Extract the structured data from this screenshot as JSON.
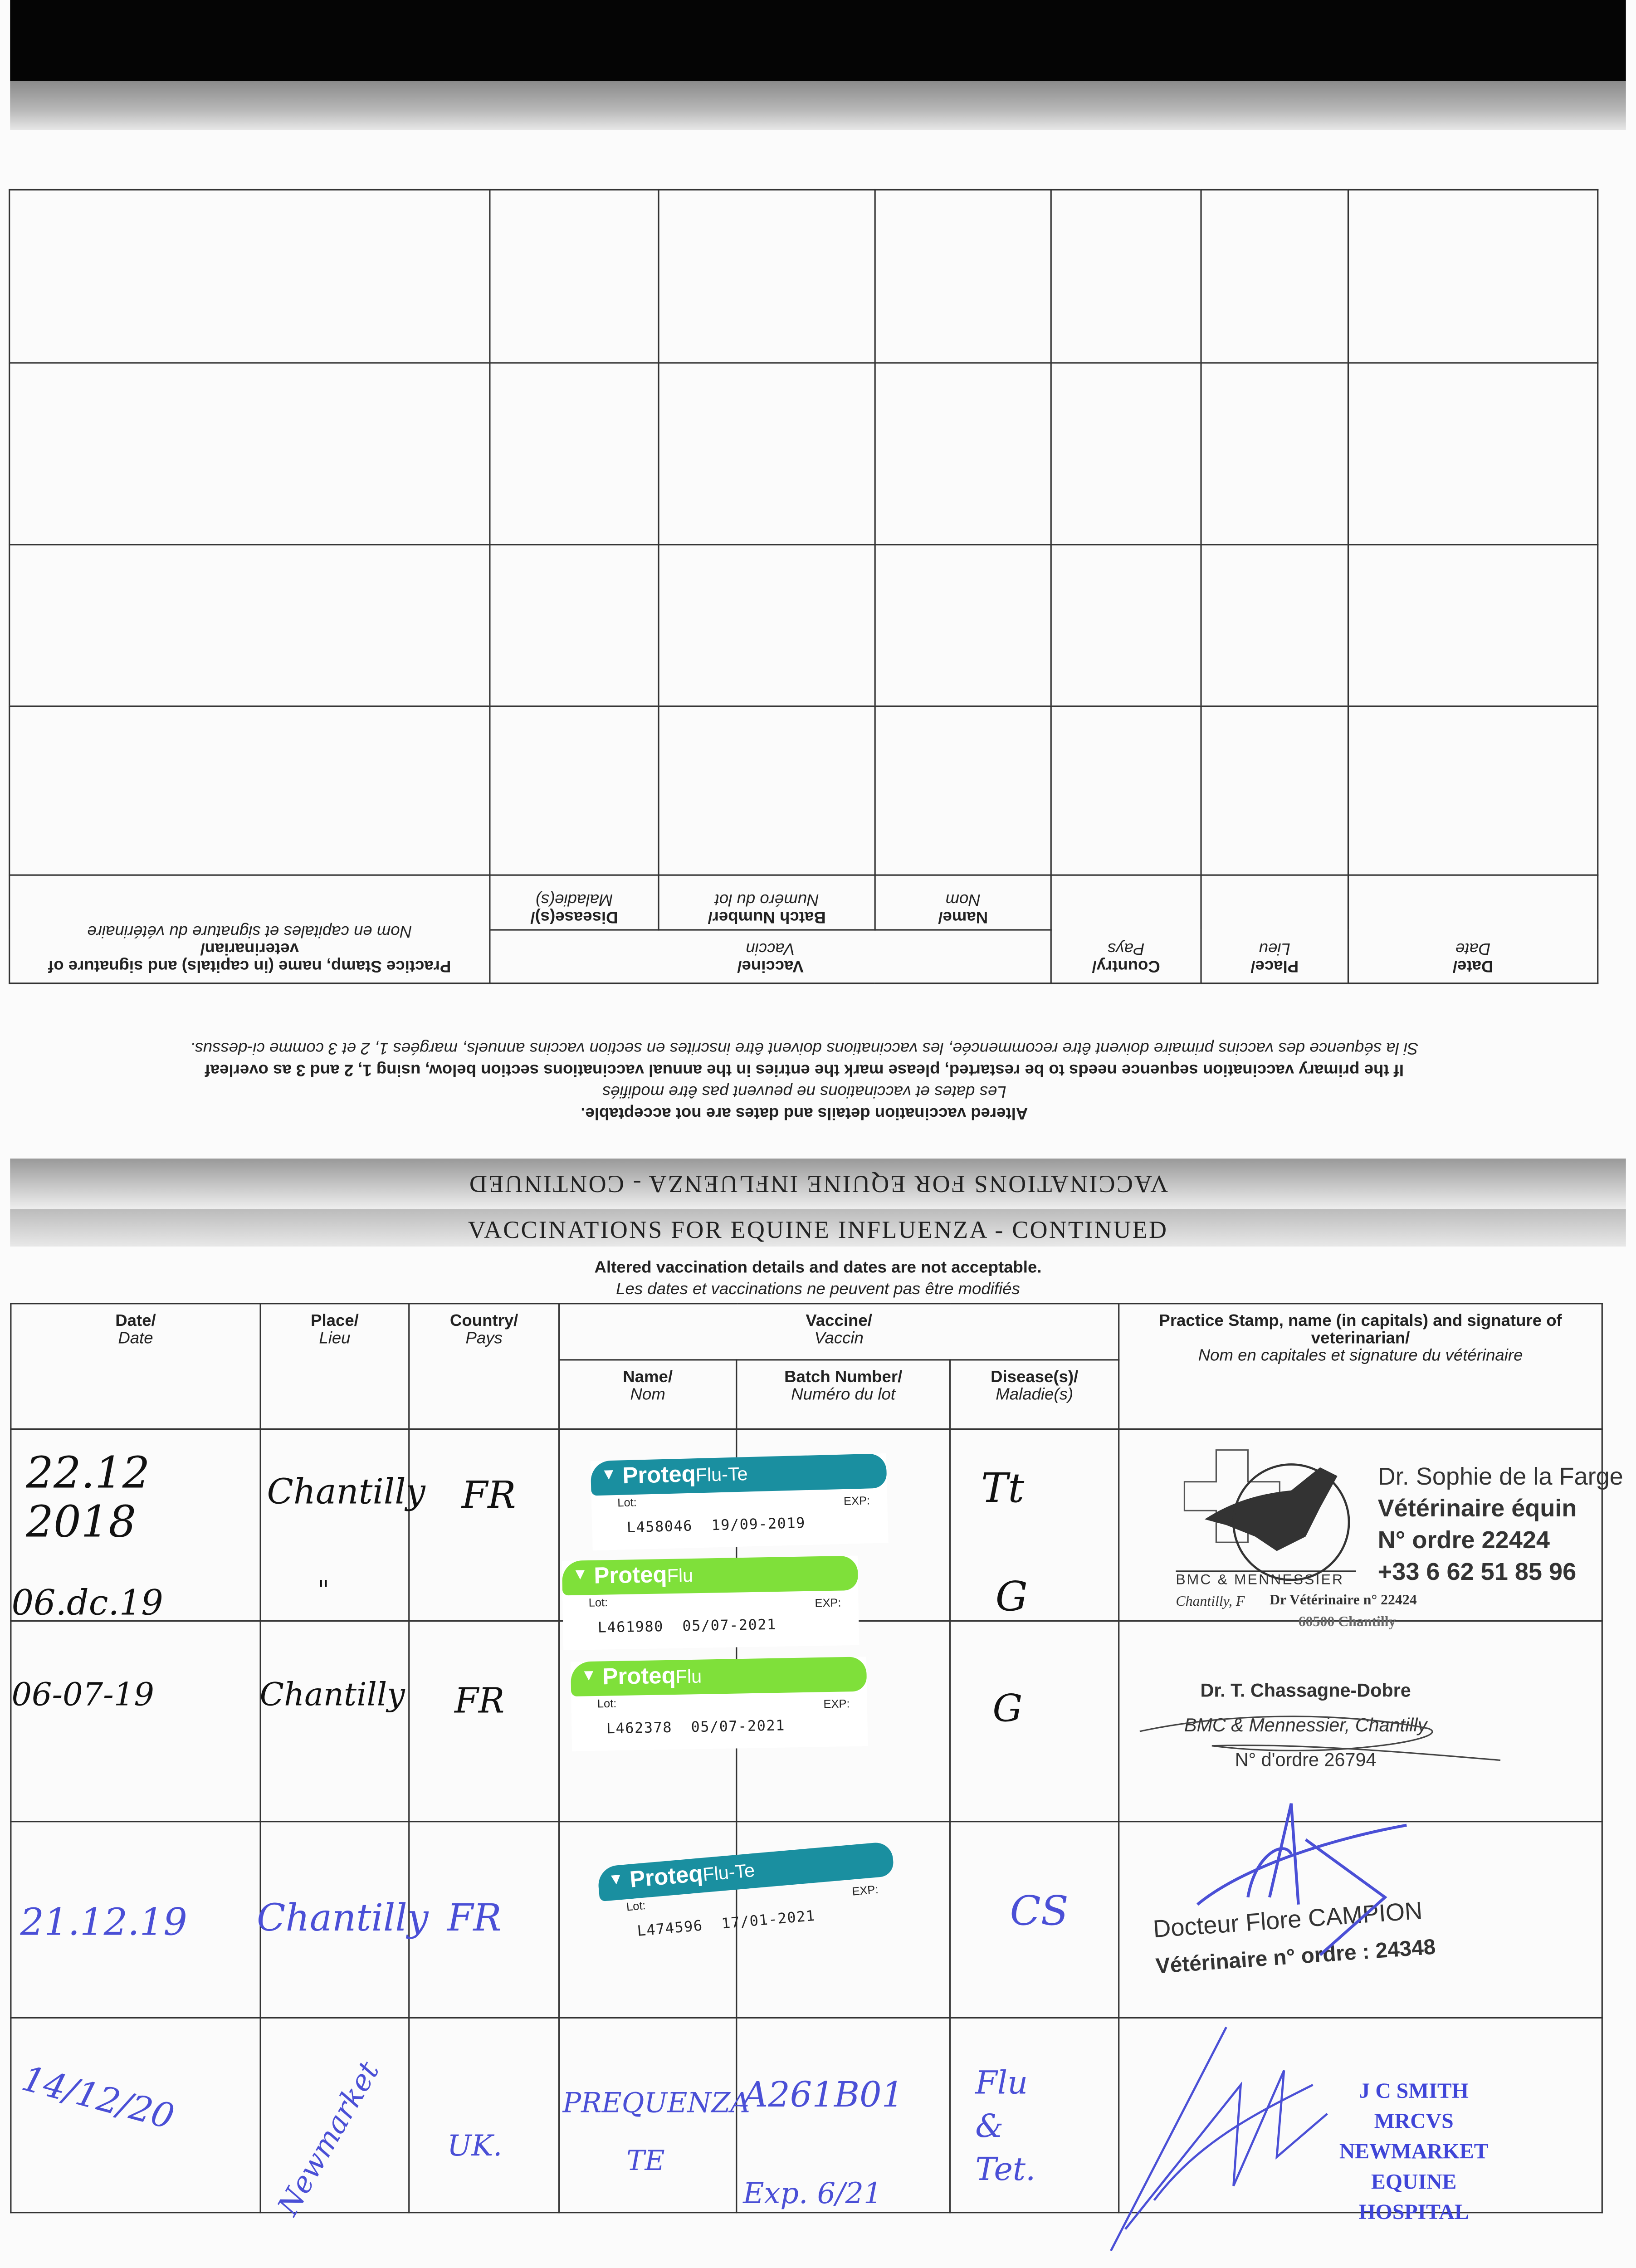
{
  "header": {
    "title": "VACCINATIONS FOR EQUINE INFLUENZA - CONTINUED"
  },
  "notice": {
    "line1": "Altered vaccination details and dates are not acceptable.",
    "line2": "Les dates et vaccinations ne peuvent pas être modifiés",
    "restart_en": "If the primary vaccination sequence needs to be restarted, please mark the entries in the annual vaccinations section below, using 1, 2 and 3 as overleaf",
    "restart_fr": "Si la séquence des vaccins primaire doivent être recommencée, les vaccinations doivent être inscrites en section vaccins annuels, margées 1, 2 et 3 comme ci-dessus."
  },
  "columns": {
    "date": {
      "en": "Date/",
      "fr": "Date"
    },
    "place": {
      "en": "Place/",
      "fr": "Lieu"
    },
    "country": {
      "en": "Country/",
      "fr": "Pays"
    },
    "vaccine": {
      "en": "Vaccine/",
      "fr": "Vaccin"
    },
    "name": {
      "en": "Name/",
      "fr": "Nom"
    },
    "batch": {
      "en": "Batch Number/",
      "fr": "Numéro du lot"
    },
    "disease": {
      "en": "Disease(s)/",
      "fr": "Maladie(s)"
    },
    "stamp": {
      "en": "Practice Stamp, name (in capitals) and signature of veterinarian/",
      "fr": "Nom en capitales et signature du vétérinaire"
    }
  },
  "colors": {
    "proteq_flu_te": "#1a8fa0",
    "proteq_flu": "#7fe03a",
    "blue_ink": "#4a4fd6"
  },
  "entries": [
    {
      "date": "22.12 2018",
      "place": "Chantilly",
      "country": "FR",
      "disease": "Tt",
      "sticker": {
        "brand": "Proteq",
        "product": "Flu-Te",
        "lot_label": "Lot:",
        "exp_label": "EXP:",
        "lot": "L458046",
        "exp": "19/09-2019"
      }
    },
    {
      "date": "06.dc.19",
      "place": "\"",
      "country": "",
      "disease": "G",
      "sticker": {
        "brand": "Proteq",
        "product": "Flu",
        "lot_label": "Lot:",
        "exp_label": "EXP:",
        "lot": "L461980",
        "exp": "05/07-2021"
      }
    },
    {
      "date": "06-07-19",
      "place": "Chantilly",
      "country": "FR",
      "disease": "G",
      "sticker": {
        "brand": "Proteq",
        "product": "Flu",
        "lot_label": "Lot:",
        "exp_label": "EXP:",
        "lot": "L462378",
        "exp": "05/07-2021"
      }
    },
    {
      "date": "21.12.19",
      "place": "Chantilly",
      "country": "FR",
      "disease": "CS",
      "sticker": {
        "brand": "Proteq",
        "product": "Flu-Te",
        "lot_label": "Lot:",
        "exp_label": "EXP:",
        "lot": "L474596",
        "exp": "17/01-2021"
      }
    },
    {
      "date": "14/12/20",
      "place": "Newmarket",
      "country": "UK.",
      "name": "PREQUENZA TE",
      "batch": "A261B01",
      "batch_exp": "Exp. 6/21",
      "disease": "Flu & Tet."
    }
  ],
  "stamps": {
    "s1": {
      "line1": "Dr. Sophie de la Farge",
      "line2": "Vétérinaire équin",
      "line3": "N° ordre 22424",
      "line4": "+33 6 62 51 85 96",
      "clinic": "BMC & MENNESSIER",
      "city": "Chantilly, F",
      "vet_no": "Dr Vétérinaire n° 22424",
      "postcode": "60500 Chantilly"
    },
    "s2": {
      "line1": "Dr. T. Chassagne-Dobre",
      "line2": "BMC & Mennessier, Chantilly",
      "line3": "N° d'ordre 26794"
    },
    "s3": {
      "line1": "Docteur Flore CAMPION",
      "line2": "Vétérinaire n° ordre : 24348"
    },
    "s4": {
      "line1": "J C SMITH MRCVS",
      "line2": "NEWMARKET",
      "line3": "EQUINE HOSPITAL"
    }
  }
}
